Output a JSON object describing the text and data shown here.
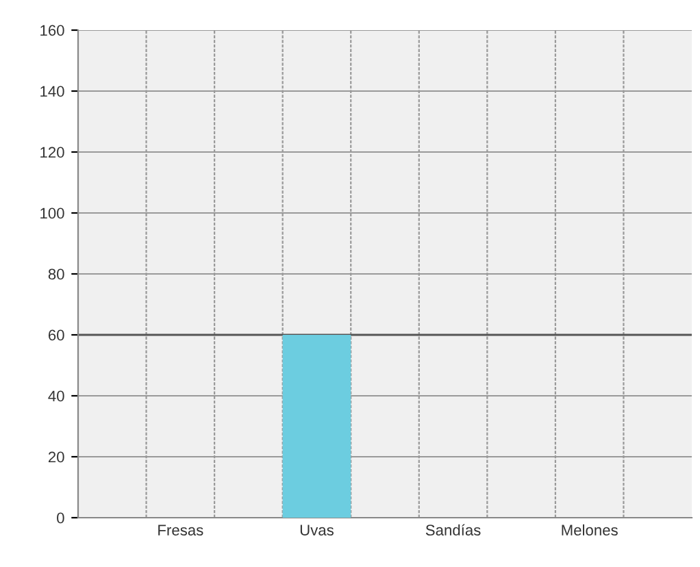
{
  "chart_data": {
    "type": "bar",
    "categories": [
      null,
      "Fresas",
      null,
      "Uvas",
      null,
      "Sandías",
      null,
      "Melones",
      null
    ],
    "values": [
      null,
      0,
      null,
      60,
      null,
      0,
      null,
      0,
      null
    ],
    "color": "#6ccde0",
    "ylim": [
      0,
      160
    ],
    "yticks": [
      0,
      20,
      40,
      60,
      80,
      100,
      120,
      140,
      160
    ],
    "grid": true,
    "ref_lines": [
      {
        "axis": "y",
        "value": 60,
        "color": "#555555"
      }
    ]
  }
}
